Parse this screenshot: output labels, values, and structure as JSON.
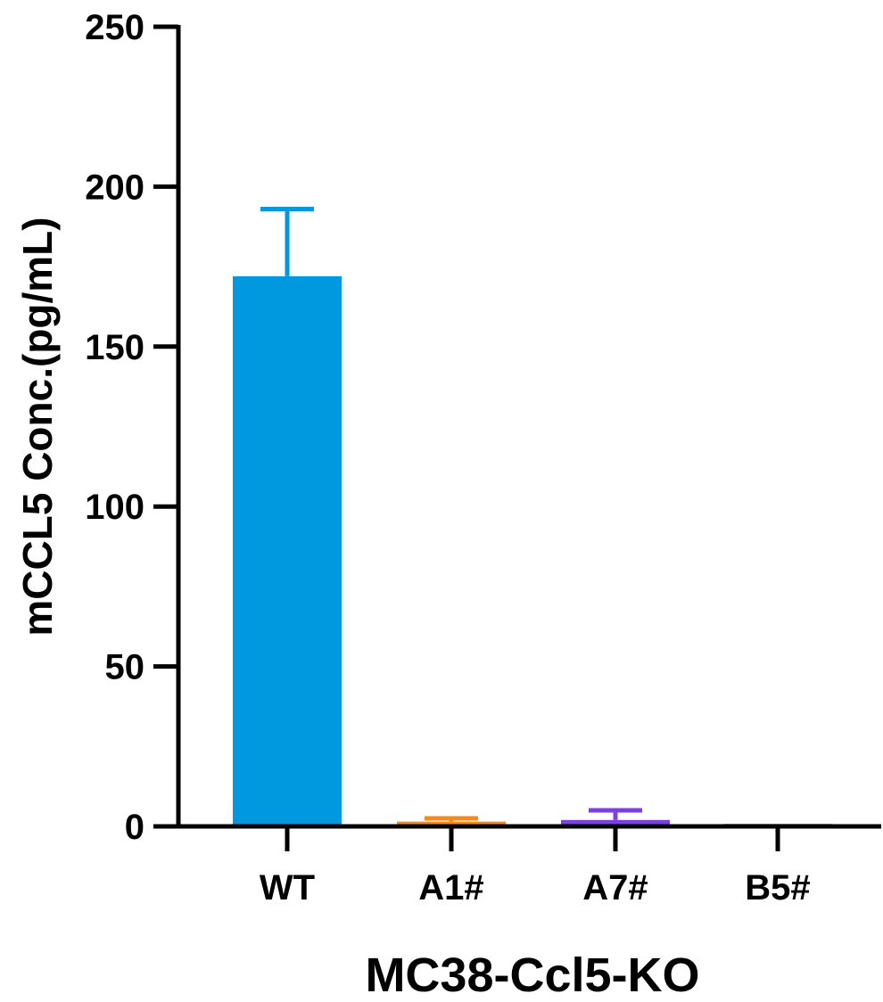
{
  "chart_data": {
    "type": "bar",
    "xlabel": "MC38-Ccl5-KO",
    "ylabel": "mCCL5 Conc.(pg/mL)",
    "ylim": [
      0,
      250
    ],
    "yticks": [
      0,
      50,
      100,
      150,
      200,
      250
    ],
    "categories": [
      "WT",
      "A1#",
      "A7#",
      "B5#"
    ],
    "values": [
      172,
      1.5,
      2,
      0.3
    ],
    "errors": [
      21,
      1,
      3,
      0
    ],
    "colors": [
      "#0099e0",
      "#f28a1e",
      "#7b3fe4",
      "#b3b3b3"
    ],
    "grid": false,
    "legend": "none"
  }
}
